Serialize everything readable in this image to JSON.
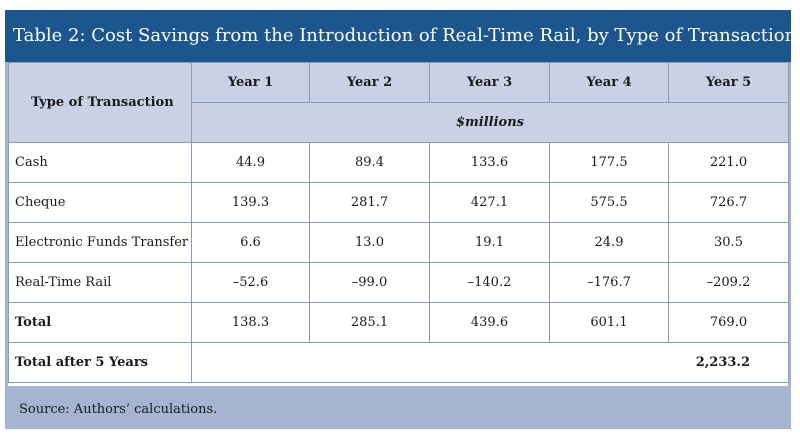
{
  "title": "Table 2: Cost Savings from the Introduction of Real-Time Rail, by Type of Transaction",
  "columns": {
    "type_header": "Type of Transaction",
    "years": [
      "Year 1",
      "Year 2",
      "Year 3",
      "Year 4",
      "Year 5"
    ],
    "units": "$millions"
  },
  "rows": [
    {
      "label": "Cash",
      "values": [
        "44.9",
        "89.4",
        "133.6",
        "177.5",
        "221.0"
      ]
    },
    {
      "label": "Cheque",
      "values": [
        "139.3",
        "281.7",
        "427.1",
        "575.5",
        "726.7"
      ]
    },
    {
      "label": "Electronic Funds Transfer",
      "values": [
        "6.6",
        "13.0",
        "19.1",
        "24.9",
        "30.5"
      ]
    },
    {
      "label": "Real-Time Rail",
      "values": [
        "–52.6",
        "–99.0",
        "–140.2",
        "–176.7",
        "–209.2"
      ]
    },
    {
      "label": "Total",
      "values": [
        "138.3",
        "285.1",
        "439.6",
        "601.1",
        "769.0"
      ]
    }
  ],
  "grand_total": {
    "label": "Total after 5 Years",
    "value": "2,233.2"
  },
  "source": "Source: Authors’ calculations."
}
